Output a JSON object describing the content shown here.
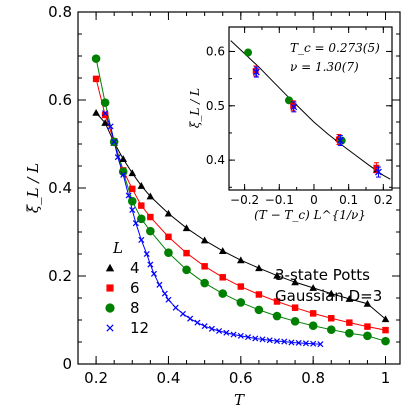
{
  "chart_data": {
    "type": "line",
    "main": {
      "xlabel": "T",
      "ylabel": "ξ_L / L",
      "xlim": [
        0.15,
        1.04
      ],
      "ylim": [
        0,
        0.8
      ],
      "xticks": [
        "0.2",
        "0.4",
        "0.6",
        "0.8",
        "1"
      ],
      "xtick_values": [
        0.2,
        0.4,
        0.6,
        0.8,
        1.0
      ],
      "yticks": [
        "0",
        "0.2",
        "0.4",
        "0.6",
        "0.8"
      ],
      "ytick_values": [
        0,
        0.2,
        0.4,
        0.6,
        0.8
      ],
      "legend_title": "L",
      "legend_position": "lower-left",
      "series": [
        {
          "name": "4",
          "color": "#000000",
          "marker": "triangle",
          "x": [
            0.2,
            0.225,
            0.25,
            0.275,
            0.3,
            0.325,
            0.35,
            0.4,
            0.45,
            0.5,
            0.55,
            0.6,
            0.65,
            0.7,
            0.75,
            0.8,
            0.85,
            0.9,
            0.95,
            1.0
          ],
          "y": [
            0.571,
            0.548,
            0.503,
            0.466,
            0.434,
            0.405,
            0.381,
            0.342,
            0.309,
            0.281,
            0.257,
            0.236,
            0.218,
            0.201,
            0.186,
            0.173,
            0.16,
            0.148,
            0.137,
            0.102
          ]
        },
        {
          "name": "6",
          "color": "#ff0000",
          "marker": "square",
          "x": [
            0.2,
            0.225,
            0.25,
            0.275,
            0.3,
            0.325,
            0.35,
            0.4,
            0.45,
            0.5,
            0.55,
            0.6,
            0.65,
            0.7,
            0.75,
            0.8,
            0.85,
            0.9,
            0.95,
            1.0
          ],
          "y": [
            0.648,
            0.566,
            0.506,
            0.44,
            0.398,
            0.36,
            0.334,
            0.289,
            0.252,
            0.222,
            0.197,
            0.176,
            0.158,
            0.142,
            0.128,
            0.115,
            0.104,
            0.094,
            0.085,
            0.077
          ]
        },
        {
          "name": "8",
          "color": "#008000",
          "marker": "circle",
          "x": [
            0.2,
            0.225,
            0.25,
            0.275,
            0.3,
            0.325,
            0.35,
            0.4,
            0.45,
            0.5,
            0.55,
            0.6,
            0.65,
            0.7,
            0.75,
            0.8,
            0.85,
            0.9,
            0.95,
            1.0
          ],
          "y": [
            0.694,
            0.594,
            0.505,
            0.437,
            0.37,
            0.33,
            0.302,
            0.253,
            0.214,
            0.184,
            0.16,
            0.14,
            0.123,
            0.109,
            0.097,
            0.087,
            0.078,
            0.07,
            0.064,
            0.052
          ]
        },
        {
          "name": "12",
          "color": "#0000ff",
          "marker": "x",
          "x": [
            0.225,
            0.24,
            0.25,
            0.26,
            0.275,
            0.29,
            0.3,
            0.31,
            0.325,
            0.34,
            0.35,
            0.36,
            0.375,
            0.39,
            0.4,
            0.42,
            0.44,
            0.46,
            0.48,
            0.5,
            0.52,
            0.54,
            0.56,
            0.58,
            0.6,
            0.62,
            0.64,
            0.66,
            0.68,
            0.7,
            0.72,
            0.74,
            0.76,
            0.78,
            0.8,
            0.82
          ],
          "y": [
            0.57,
            0.54,
            0.505,
            0.47,
            0.43,
            0.383,
            0.35,
            0.32,
            0.282,
            0.25,
            0.226,
            0.205,
            0.18,
            0.16,
            0.146,
            0.128,
            0.114,
            0.103,
            0.094,
            0.086,
            0.08,
            0.075,
            0.071,
            0.067,
            0.064,
            0.061,
            0.058,
            0.056,
            0.054,
            0.052,
            0.051,
            0.049,
            0.048,
            0.047,
            0.046,
            0.045
          ]
        }
      ],
      "annotation": [
        "3-state Potts",
        "Gaussian D=3"
      ]
    },
    "inset": {
      "xlabel": "(T − T_c) L^{1/ν}",
      "ylabel": "ξ_L / L",
      "xlim": [
        -0.245,
        0.225
      ],
      "ylim": [
        0.345,
        0.645
      ],
      "xticks": [
        "−0.2",
        "−0.1",
        "0",
        "0.1",
        "0.2"
      ],
      "xtick_values": [
        -0.2,
        -0.1,
        0,
        0.1,
        0.2
      ],
      "yticks": [
        "0.4",
        "0.5",
        "0.6"
      ],
      "ytick_values": [
        0.4,
        0.5,
        0.6
      ],
      "fit_curve": {
        "x": [
          -0.24,
          -0.2,
          -0.16,
          -0.12,
          -0.08,
          -0.04,
          0.0,
          0.04,
          0.08,
          0.12,
          0.16,
          0.2,
          0.22
        ],
        "y": [
          0.62,
          0.596,
          0.572,
          0.546,
          0.52,
          0.495,
          0.47,
          0.448,
          0.428,
          0.409,
          0.39,
          0.372,
          0.365
        ]
      },
      "points": [
        {
          "series": "4",
          "x": 0.18,
          "y": 0.382
        },
        {
          "series": "6",
          "x": 0.18,
          "y": 0.386
        },
        {
          "series": "12",
          "x": 0.186,
          "y": 0.378
        },
        {
          "series": "4",
          "x": 0.07,
          "y": 0.44
        },
        {
          "series": "6",
          "x": 0.072,
          "y": 0.438
        },
        {
          "series": "8",
          "x": 0.08,
          "y": 0.436
        },
        {
          "series": "12",
          "x": 0.076,
          "y": 0.436
        },
        {
          "series": "4",
          "x": -0.07,
          "y": 0.51
        },
        {
          "series": "8",
          "x": -0.072,
          "y": 0.51
        },
        {
          "series": "6",
          "x": -0.06,
          "y": 0.5
        },
        {
          "series": "12",
          "x": -0.058,
          "y": 0.498
        },
        {
          "series": "6",
          "x": -0.168,
          "y": 0.564
        },
        {
          "series": "12",
          "x": -0.166,
          "y": 0.562
        },
        {
          "series": "8",
          "x": -0.19,
          "y": 0.598
        }
      ],
      "annotation": [
        "T_c = 0.273(5)",
        "ν = 1.30(7)"
      ]
    }
  }
}
